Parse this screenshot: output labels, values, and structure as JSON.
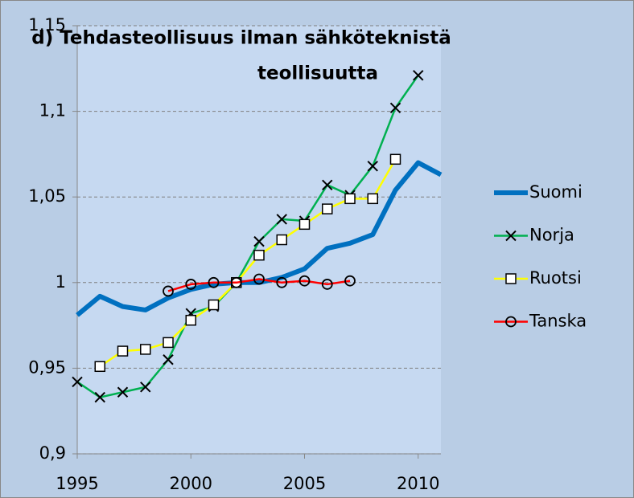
{
  "chart_data": {
    "type": "line",
    "title": [
      "d) Tehdasteollisuus ilman sähköteknistä",
      "teollisuutta"
    ],
    "x": [
      1995,
      1996,
      1997,
      1998,
      1999,
      2000,
      2001,
      2002,
      2003,
      2004,
      2005,
      2006,
      2007,
      2008,
      2009,
      2010,
      2011
    ],
    "series": [
      {
        "name": "Suomi",
        "color": "#0070c0",
        "marker": "none",
        "width": 6,
        "values": [
          0.981,
          0.992,
          0.986,
          0.984,
          0.991,
          0.996,
          0.999,
          1.0,
          1.0,
          1.003,
          1.008,
          1.02,
          1.023,
          1.028,
          1.054,
          1.07,
          1.063
        ]
      },
      {
        "name": "Norja",
        "color": "#00b050",
        "marker": "x",
        "width": 2.5,
        "values": [
          0.942,
          0.933,
          0.936,
          0.939,
          0.955,
          0.982,
          0.986,
          1.0,
          1.024,
          1.037,
          1.036,
          1.057,
          1.051,
          1.068,
          1.102,
          1.121,
          null
        ]
      },
      {
        "name": "Ruotsi",
        "color": "#ffff00",
        "marker": "square",
        "width": 2.5,
        "values": [
          null,
          0.951,
          0.96,
          0.961,
          0.965,
          0.978,
          0.987,
          1.0,
          1.016,
          1.025,
          1.034,
          1.043,
          1.049,
          1.049,
          1.072,
          null,
          null
        ]
      },
      {
        "name": "Tanska",
        "color": "#ff0000",
        "marker": "circle",
        "width": 2.5,
        "values": [
          null,
          null,
          null,
          null,
          0.995,
          0.999,
          1.0,
          1.0,
          1.002,
          1.0,
          1.001,
          0.999,
          1.001,
          null,
          null,
          null,
          null
        ]
      }
    ],
    "xlim": [
      1995,
      2011
    ],
    "xticks": [
      1995,
      2000,
      2005,
      2010
    ],
    "ylim": [
      0.9,
      1.15
    ],
    "yticks": [
      {
        "value": 0.9,
        "label": "0,9"
      },
      {
        "value": 0.95,
        "label": "0,95"
      },
      1,
      {
        "value": 1.05,
        "label": "1,05"
      },
      {
        "value": 1.1,
        "label": "1,1"
      },
      {
        "value": 1.15,
        "label": "1,15"
      }
    ],
    "grid": true,
    "legend": "right"
  }
}
